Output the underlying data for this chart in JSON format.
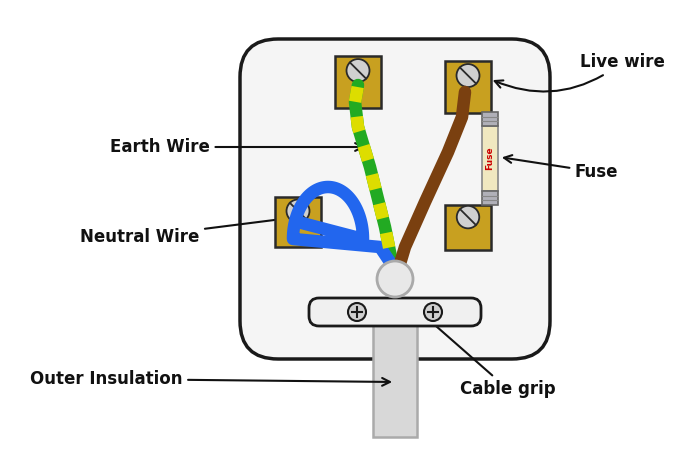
{
  "bg_color": "#ffffff",
  "plug_body_color": "#f5f5f5",
  "plug_body_edge": "#1a1a1a",
  "terminal_color": "#c8a020",
  "terminal_edge": "#2a2a2a",
  "screw_color": "#d0d0d0",
  "screw_line_color": "#333333",
  "fuse_body_color": "#f0e8c0",
  "fuse_cap_color": "#b0b0b8",
  "fuse_text_color": "#cc0000",
  "cable_grip_color": "#f0f0f0",
  "cable_grip_edge": "#1a1a1a",
  "earth_color1": "#22aa22",
  "earth_color2": "#dddd00",
  "neutral_wire_color": "#2266ee",
  "live_wire_color": "#7a4010",
  "cable_outer_color": "#d8d8d8",
  "cable_edge_color": "#aaaaaa",
  "core_color": "#e8e8e8",
  "labels": {
    "earth_wire": "Earth Wire",
    "neutral_wire": "Neutral Wire",
    "live_wire": "Live wire",
    "fuse": "Fuse",
    "outer_insulation": "Outer Insulation",
    "cable_grip": "Cable grip"
  },
  "label_fontsize": 12,
  "label_fontweight": "bold",
  "label_color": "#111111",
  "figsize": [
    7.0,
    4.57
  ],
  "dpi": 100
}
